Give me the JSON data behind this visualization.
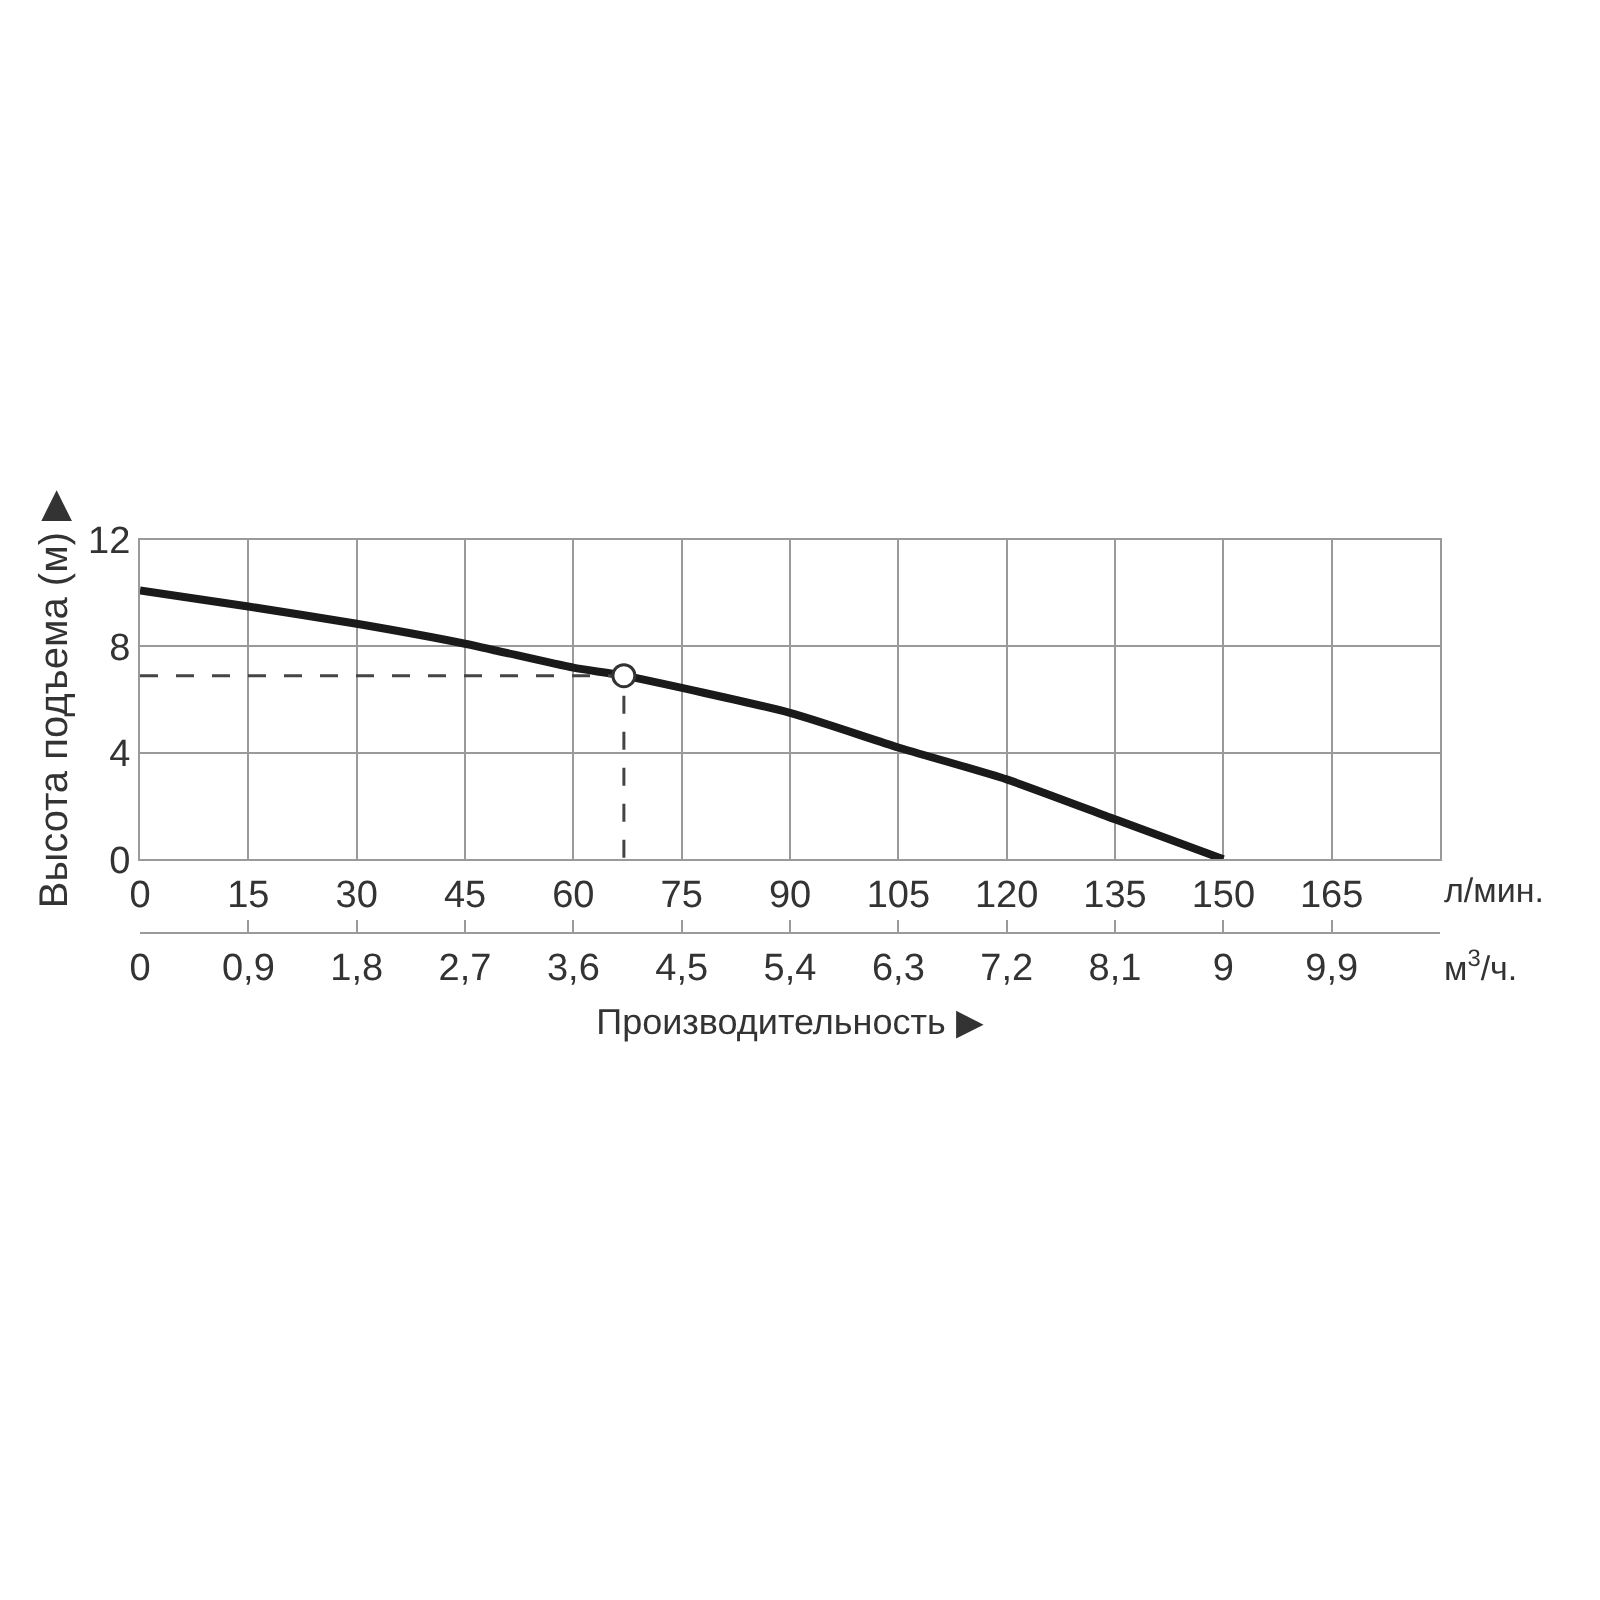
{
  "chart_data": {
    "type": "line",
    "xlabel": "Производительность ▶",
    "ylabel": "Высота подъема (м) ▶",
    "annotations": [
      "л/мин.",
      "м$^{3}$/ч."
    ],
    "xlim": [
      0,
      180
    ],
    "xticks": [
      0,
      15,
      30,
      45,
      60,
      75,
      90,
      105,
      120,
      135,
      150,
      165
    ],
    "x2lim": [
      0,
      10.8
    ],
    "x2ticks": [
      {
        "value": 0,
        "label": "0"
      },
      {
        "value": 0.9,
        "label": "0,9"
      },
      {
        "value": 1.8,
        "label": "1,8"
      },
      {
        "value": 2.7,
        "label": "2,7"
      },
      {
        "value": 3.6,
        "label": "3,6"
      },
      {
        "value": 4.5,
        "label": "4,5"
      },
      {
        "value": 5.4,
        "label": "5,4"
      },
      {
        "value": 6.3,
        "label": "6,3"
      },
      {
        "value": 7.2,
        "label": "7,2"
      },
      {
        "value": 8.1,
        "label": "8,1"
      },
      {
        "value": 9,
        "label": "9"
      },
      {
        "value": 9.9,
        "label": "9,9"
      }
    ],
    "ylim": [
      0,
      12
    ],
    "yticks": [
      0,
      4,
      8,
      12
    ],
    "grid": true,
    "series": [
      {
        "color": "#1a1a1a",
        "line_style": "solid",
        "x": [
          0,
          15,
          30,
          45,
          60,
          67,
          90,
          105,
          120,
          135,
          150
        ],
        "values": [
          10.1,
          9.5,
          8.85,
          8.1,
          7.2,
          6.9,
          5.5,
          4.2,
          3.0,
          1.5,
          0
        ]
      },
      {
        "type": "line",
        "color": "#444444",
        "line_style": "dashed",
        "x": [
          0,
          67,
          67
        ],
        "values": [
          6.9,
          6.9,
          0
        ]
      },
      {
        "type": "scatter",
        "color": "#ffffff",
        "marker": "circle",
        "x": [
          67
        ],
        "values": [
          6.9
        ]
      }
    ]
  }
}
